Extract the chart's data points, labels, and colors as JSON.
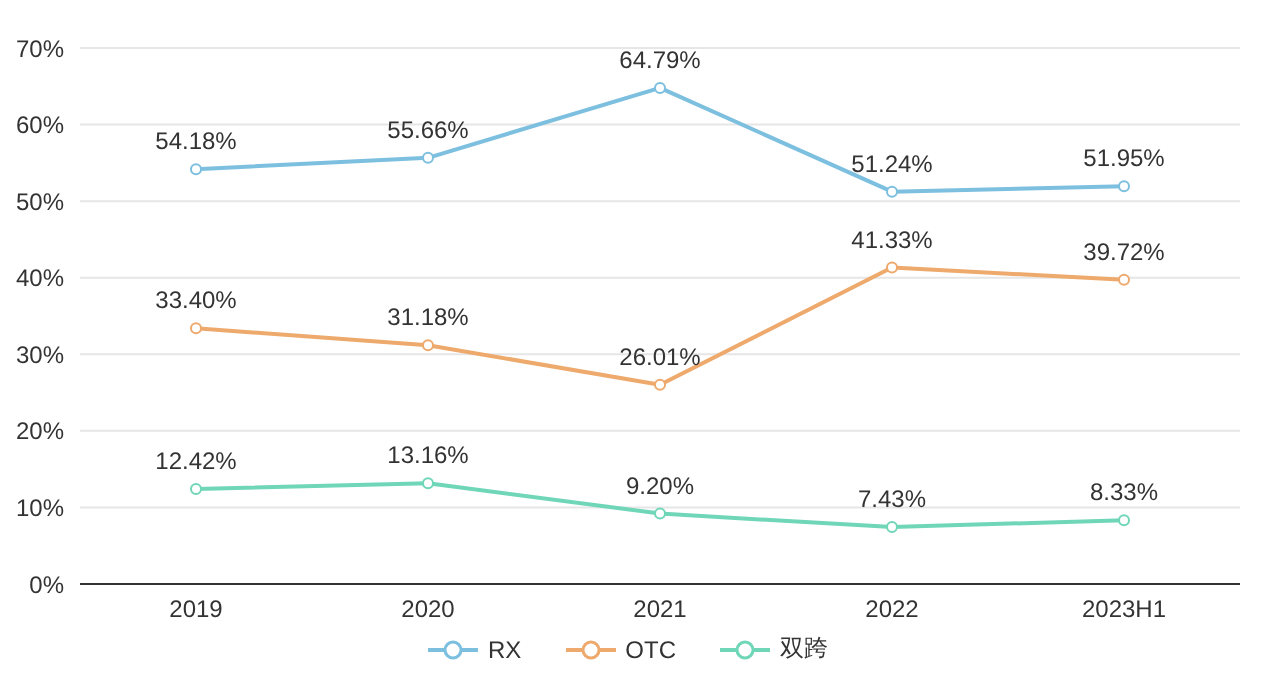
{
  "chart_data": {
    "type": "line",
    "categories": [
      "2019",
      "2020",
      "2021",
      "2022",
      "2023H1"
    ],
    "series": [
      {
        "name": "RX",
        "color": "#7cbfdf",
        "values": [
          54.18,
          55.66,
          64.79,
          51.24,
          51.95
        ],
        "value_labels": [
          "54.18%",
          "55.66%",
          "64.79%",
          "51.24%",
          "51.95%"
        ]
      },
      {
        "name": "OTC",
        "color": "#eea96c",
        "values": [
          33.4,
          31.18,
          26.01,
          41.33,
          39.72
        ],
        "value_labels": [
          "33.40%",
          "31.18%",
          "26.01%",
          "41.33%",
          "39.72%"
        ]
      },
      {
        "name": "双跨",
        "color": "#6fd6b8",
        "values": [
          12.42,
          13.16,
          9.2,
          7.43,
          8.33
        ],
        "value_labels": [
          "12.42%",
          "13.16%",
          "9.20%",
          "7.43%",
          "8.33%"
        ]
      }
    ],
    "ylim": [
      0,
      70
    ],
    "yticks": [
      {
        "value": 0,
        "label": "0%"
      },
      {
        "value": 10,
        "label": "10%"
      },
      {
        "value": 20,
        "label": "20%"
      },
      {
        "value": 30,
        "label": "30%"
      },
      {
        "value": 40,
        "label": "40%"
      },
      {
        "value": 50,
        "label": "50%"
      },
      {
        "value": 60,
        "label": "60%"
      },
      {
        "value": 70,
        "label": "70%"
      }
    ],
    "grid": "y",
    "legend": "bottom",
    "marker": "circle",
    "line_style": "solid"
  }
}
